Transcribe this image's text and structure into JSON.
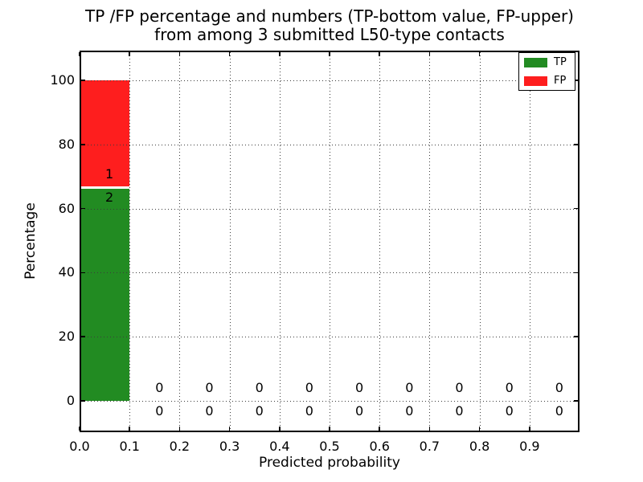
{
  "title": {
    "line1": "TP /FP percentage and numbers (TP-bottom value, FP-upper)",
    "line2": "from among 3 submitted L50-type contacts"
  },
  "chart_data": {
    "type": "bar",
    "stacked": true,
    "title": "TP /FP percentage and numbers (TP-bottom value, FP-upper)\nfrom among 3 submitted L50-type contacts",
    "xlabel": "Predicted probability",
    "ylabel": "Percentage",
    "xlim": [
      0.0,
      1.0
    ],
    "ylim": [
      -10,
      110
    ],
    "grid": {
      "style": "dotted",
      "color": "#3c3c3c"
    },
    "legend_position": "upper right",
    "total_contacts": 3,
    "bin_edges": [
      0.0,
      0.1,
      0.2,
      0.3,
      0.4,
      0.5,
      0.6,
      0.7,
      0.8,
      0.9,
      1.0
    ],
    "xticks": [
      {
        "value": 0.0,
        "label": "0.0"
      },
      {
        "value": 0.1,
        "label": "0.1"
      },
      {
        "value": 0.2,
        "label": "0.2"
      },
      {
        "value": 0.3,
        "label": "0.3"
      },
      {
        "value": 0.4,
        "label": "0.4"
      },
      {
        "value": 0.5,
        "label": "0.5"
      },
      {
        "value": 0.6,
        "label": "0.6"
      },
      {
        "value": 0.7,
        "label": "0.7"
      },
      {
        "value": 0.8,
        "label": "0.8"
      },
      {
        "value": 0.9,
        "label": "0.9"
      }
    ],
    "yticks": [
      {
        "value": 0,
        "label": "0"
      },
      {
        "value": 20,
        "label": "20"
      },
      {
        "value": 40,
        "label": "40"
      },
      {
        "value": 60,
        "label": "60"
      },
      {
        "value": 80,
        "label": "80"
      },
      {
        "value": 100,
        "label": "100"
      }
    ],
    "series": [
      {
        "name": "TP",
        "color": "#228b22",
        "percentages": [
          66.67,
          0,
          0,
          0,
          0,
          0,
          0,
          0,
          0,
          0
        ],
        "counts": [
          2,
          0,
          0,
          0,
          0,
          0,
          0,
          0,
          0,
          0
        ]
      },
      {
        "name": "FP",
        "color": "#fe1e1e",
        "percentages": [
          33.33,
          0,
          0,
          0,
          0,
          0,
          0,
          0,
          0,
          0
        ],
        "counts": [
          1,
          0,
          0,
          0,
          0,
          0,
          0,
          0,
          0,
          0
        ]
      }
    ],
    "legend": {
      "entries": [
        {
          "label": "TP",
          "color": "#228b22"
        },
        {
          "label": "FP",
          "color": "#fe1e1e"
        }
      ]
    }
  }
}
